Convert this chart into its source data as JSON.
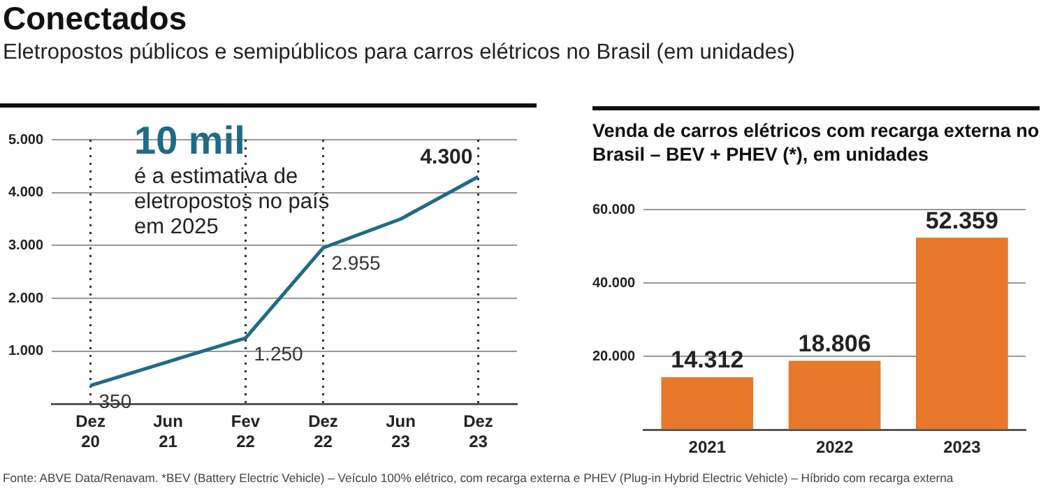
{
  "chart_data": [
    {
      "type": "line",
      "title": "Conectados",
      "subtitle": "Eletropostos públicos e semipúblicos para carros elétricos no Brasil (em unidades)",
      "categories": [
        "Dez 20",
        "Jun 21",
        "Fev 22",
        "Dez 22",
        "Jun 23",
        "Dez 23"
      ],
      "series": [
        {
          "color": "#1f6b86",
          "values": [
            350,
            800,
            1250,
            2955,
            3500,
            4300
          ],
          "value_labels": [
            "350",
            null,
            "1.250",
            "2.955",
            null,
            "4.300"
          ]
        }
      ],
      "ylim": [
        0,
        5000
      ],
      "yticks": [
        {
          "value": 0,
          "label": null
        },
        {
          "value": 1000,
          "label": "1.000"
        },
        {
          "value": 2000,
          "label": "2.000"
        },
        {
          "value": 3000,
          "label": "3.000"
        },
        {
          "value": 4000,
          "label": "4.000"
        },
        {
          "value": 5000,
          "label": "5.000"
        }
      ],
      "grid": "y",
      "legend": false,
      "marker": "none",
      "line_style": "solid",
      "ref_lines": [
        {
          "axis": "x",
          "value": "Dez 20",
          "line_style": "dotted"
        },
        {
          "axis": "x",
          "value": "Fev 22",
          "line_style": "dotted"
        },
        {
          "axis": "x",
          "value": "Dez 22",
          "line_style": "dotted"
        },
        {
          "axis": "x",
          "value": "Dez 23",
          "line_style": "dotted"
        }
      ],
      "annotations": [
        "10 mil",
        "é a estimativa de eletropostos no país em 2025",
        "Fonte: ABVE Data/Renavam. *BEV (Battery Electric Vehicle) – Veículo 100% elétrico, com recarga externa e PHEV (Plug-in Hybrid Electric Vehicle) – Híbrido com recarga externa"
      ]
    },
    {
      "type": "bar",
      "title": "Venda de carros elétricos com recarga externa no Brasil – BEV + PHEV (*), em unidades",
      "categories": [
        "2021",
        "2022",
        "2023"
      ],
      "series": [
        {
          "color": "#e8782a",
          "values": [
            14312,
            18806,
            52359
          ],
          "value_labels": [
            "14.312",
            "18.806",
            "52.359"
          ]
        }
      ],
      "ylim": [
        0,
        60000
      ],
      "yticks": [
        {
          "value": 0,
          "label": null
        },
        {
          "value": 20000,
          "label": "20.000"
        },
        {
          "value": 40000,
          "label": "40.000"
        },
        {
          "value": 60000,
          "label": "60.000"
        }
      ],
      "grid": "y",
      "legend": false
    }
  ]
}
